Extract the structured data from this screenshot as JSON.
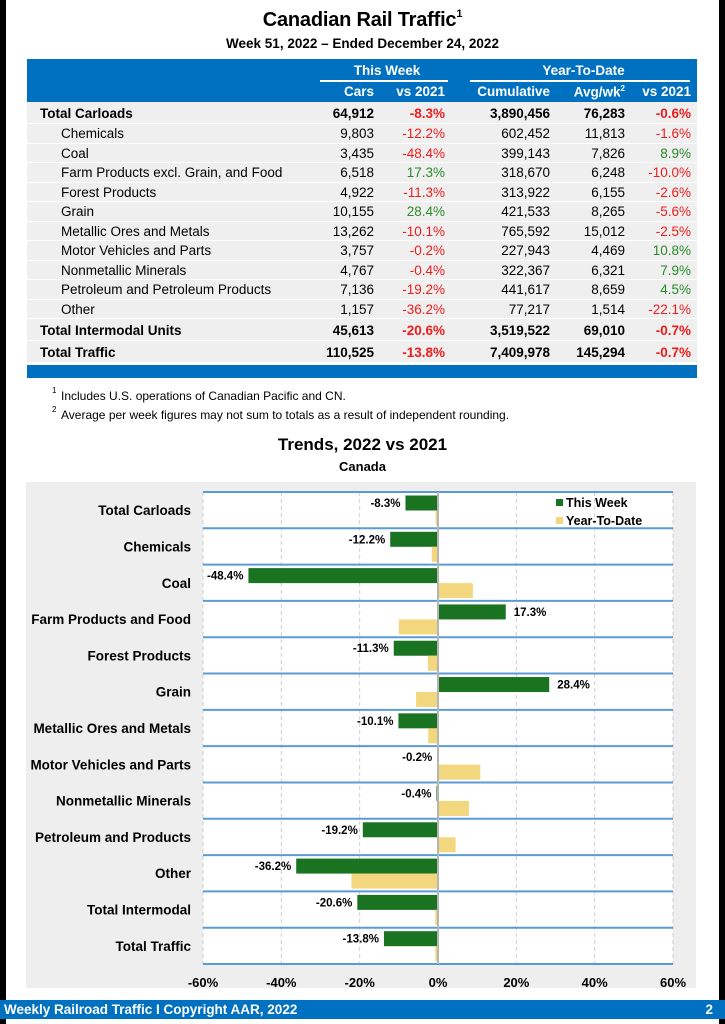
{
  "header": {
    "title": "Canadian Rail Traffic",
    "title_sup": "1",
    "subtitle": "Week 51, 2022 – Ended December 24, 2022"
  },
  "table": {
    "group_this_week": "This Week",
    "group_ytd": "Year-To-Date",
    "col_cars": "Cars",
    "col_vs2021_week": "vs 2021",
    "col_cumulative": "Cumulative",
    "col_avgwk": "Avg/wk",
    "col_avgwk_sup": "2",
    "col_vs2021_ytd": "vs 2021",
    "rows": [
      {
        "label": "Total Carloads",
        "type": "total",
        "cars": "64,912",
        "vs_week": "-8.3%",
        "cumulative": "3,890,456",
        "avgwk": "76,283",
        "vs_ytd": "-0.6%"
      },
      {
        "label": "Chemicals",
        "type": "sub",
        "cars": "9,803",
        "vs_week": "-12.2%",
        "cumulative": "602,452",
        "avgwk": "11,813",
        "vs_ytd": "-1.6%"
      },
      {
        "label": "Coal",
        "type": "sub",
        "cars": "3,435",
        "vs_week": "-48.4%",
        "cumulative": "399,143",
        "avgwk": "7,826",
        "vs_ytd": "8.9%"
      },
      {
        "label": "Farm Products excl. Grain, and Food",
        "type": "sub",
        "cars": "6,518",
        "vs_week": "17.3%",
        "cumulative": "318,670",
        "avgwk": "6,248",
        "vs_ytd": "-10.0%"
      },
      {
        "label": "Forest Products",
        "type": "sub",
        "cars": "4,922",
        "vs_week": "-11.3%",
        "cumulative": "313,922",
        "avgwk": "6,155",
        "vs_ytd": "-2.6%"
      },
      {
        "label": "Grain",
        "type": "sub",
        "cars": "10,155",
        "vs_week": "28.4%",
        "cumulative": "421,533",
        "avgwk": "8,265",
        "vs_ytd": "-5.6%"
      },
      {
        "label": "Metallic Ores and Metals",
        "type": "sub",
        "cars": "13,262",
        "vs_week": "-10.1%",
        "cumulative": "765,592",
        "avgwk": "15,012",
        "vs_ytd": "-2.5%"
      },
      {
        "label": "Motor Vehicles and Parts",
        "type": "sub",
        "cars": "3,757",
        "vs_week": "-0.2%",
        "cumulative": "227,943",
        "avgwk": "4,469",
        "vs_ytd": "10.8%"
      },
      {
        "label": "Nonmetallic Minerals",
        "type": "sub",
        "cars": "4,767",
        "vs_week": "-0.4%",
        "cumulative": "322,367",
        "avgwk": "6,321",
        "vs_ytd": "7.9%"
      },
      {
        "label": "Petroleum and Petroleum Products",
        "type": "sub",
        "cars": "7,136",
        "vs_week": "-19.2%",
        "cumulative": "441,617",
        "avgwk": "8,659",
        "vs_ytd": "4.5%"
      },
      {
        "label": "Other",
        "type": "sub",
        "cars": "1,157",
        "vs_week": "-36.2%",
        "cumulative": "77,217",
        "avgwk": "1,514",
        "vs_ytd": "-22.1%"
      },
      {
        "label": "Total Intermodal Units",
        "type": "total",
        "cars": "45,613",
        "vs_week": "-20.6%",
        "cumulative": "3,519,522",
        "avgwk": "69,010",
        "vs_ytd": "-0.7%"
      },
      {
        "label": "Total Traffic",
        "type": "total",
        "cars": "110,525",
        "vs_week": "-13.8%",
        "cumulative": "7,409,978",
        "avgwk": "145,294",
        "vs_ytd": "-0.7%"
      }
    ]
  },
  "footnotes": [
    {
      "mark": "1",
      "text": "Includes U.S. operations of Canadian Pacific and CN."
    },
    {
      "mark": "2",
      "text": "Average per week figures may not sum to totals as a result of independent rounding."
    }
  ],
  "colors": {
    "brand_blue": "#0070c0",
    "negative": "#ee1c1c",
    "positive": "#2a8a2a",
    "this_week_bar": "#1a7320",
    "ytd_bar": "#f2d77e"
  },
  "chart_data": {
    "type": "bar",
    "orientation": "horizontal",
    "title": "Trends, 2022 vs 2021",
    "subtitle": "Canada",
    "xlabel": "",
    "ylabel": "",
    "xlim": [
      -60,
      60
    ],
    "xticks": [
      -60,
      -40,
      -20,
      0,
      20,
      40,
      60
    ],
    "xtick_labels": [
      "-60%",
      "-40%",
      "-20%",
      "0%",
      "20%",
      "40%",
      "60%"
    ],
    "grid": true,
    "legend_position": "top-right",
    "categories": [
      "Total Carloads",
      "Chemicals",
      "Coal",
      "Farm Products and Food",
      "Forest Products",
      "Grain",
      "Metallic Ores and Metals",
      "Motor Vehicles and Parts",
      "Nonmetallic Minerals",
      "Petroleum and Products",
      "Other",
      "Total Intermodal",
      "Total Traffic"
    ],
    "series": [
      {
        "name": "This Week",
        "values": [
          -8.3,
          -12.2,
          -48.4,
          17.3,
          -11.3,
          28.4,
          -10.1,
          -0.2,
          -0.4,
          -19.2,
          -36.2,
          -20.6,
          -13.8
        ],
        "labels": [
          "-8.3%",
          "-12.2%",
          "-48.4%",
          "17.3%",
          "-11.3%",
          "28.4%",
          "-10.1%",
          "-0.2%",
          "-0.4%",
          "-19.2%",
          "-36.2%",
          "-20.6%",
          "-13.8%"
        ]
      },
      {
        "name": "Year-To-Date",
        "values": [
          -0.6,
          -1.6,
          8.9,
          -10.0,
          -2.6,
          -5.6,
          -2.5,
          10.8,
          7.9,
          4.5,
          -22.1,
          -0.7,
          -0.7
        ]
      }
    ]
  },
  "footer": {
    "left": "Weekly Railroad Traffic I Copyright AAR, 2022",
    "page": "2"
  }
}
